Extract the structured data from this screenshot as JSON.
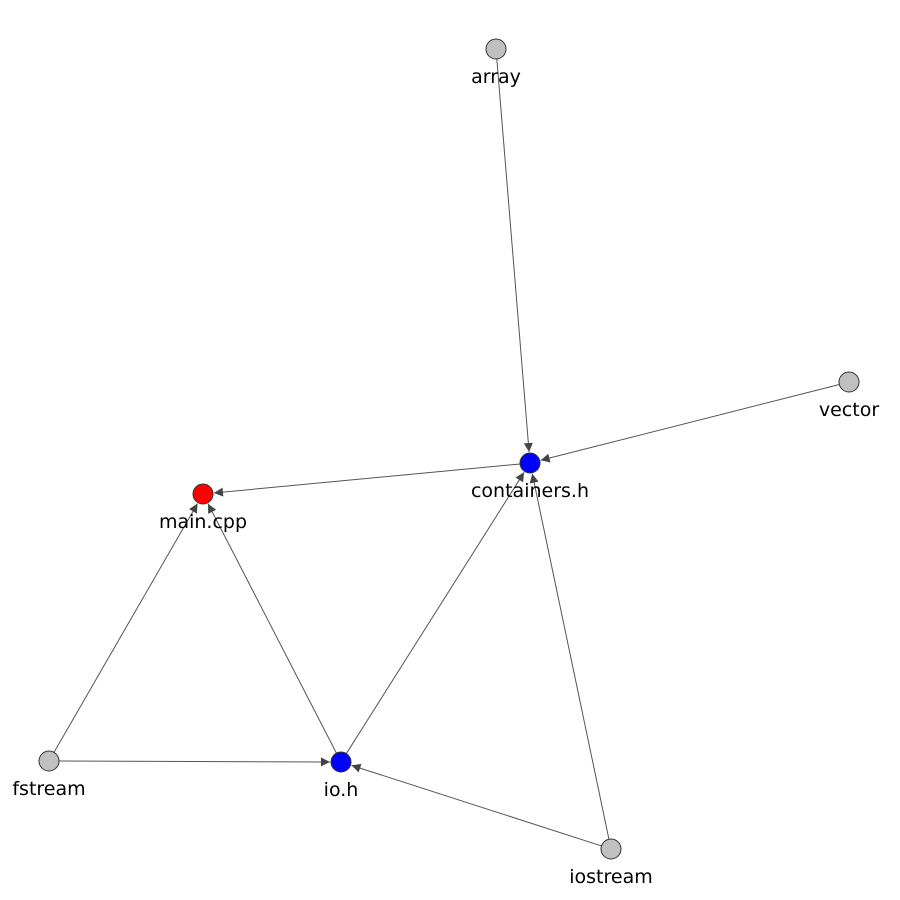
{
  "graph": {
    "nodes": [
      {
        "id": "array",
        "label": "array",
        "role": "system-header",
        "color": "#c0c0c0"
      },
      {
        "id": "vector",
        "label": "vector",
        "role": "system-header",
        "color": "#c0c0c0"
      },
      {
        "id": "containers_h",
        "label": "containers.h",
        "role": "project-header",
        "color": "#0000ff"
      },
      {
        "id": "main_cpp",
        "label": "main.cpp",
        "role": "source",
        "color": "#ff0000"
      },
      {
        "id": "fstream",
        "label": "fstream",
        "role": "system-header",
        "color": "#c0c0c0"
      },
      {
        "id": "io_h",
        "label": "io.h",
        "role": "project-header",
        "color": "#0000ff"
      },
      {
        "id": "iostream",
        "label": "iostream",
        "role": "system-header",
        "color": "#c0c0c0"
      }
    ],
    "edges": [
      {
        "from": "array",
        "to": "containers_h"
      },
      {
        "from": "vector",
        "to": "containers_h"
      },
      {
        "from": "containers_h",
        "to": "main_cpp"
      },
      {
        "from": "io_h",
        "to": "containers_h"
      },
      {
        "from": "iostream",
        "to": "containers_h"
      },
      {
        "from": "fstream",
        "to": "main_cpp"
      },
      {
        "from": "io_h",
        "to": "main_cpp"
      },
      {
        "from": "fstream",
        "to": "io_h"
      },
      {
        "from": "iostream",
        "to": "io_h"
      }
    ],
    "edge_color": "#555555"
  }
}
